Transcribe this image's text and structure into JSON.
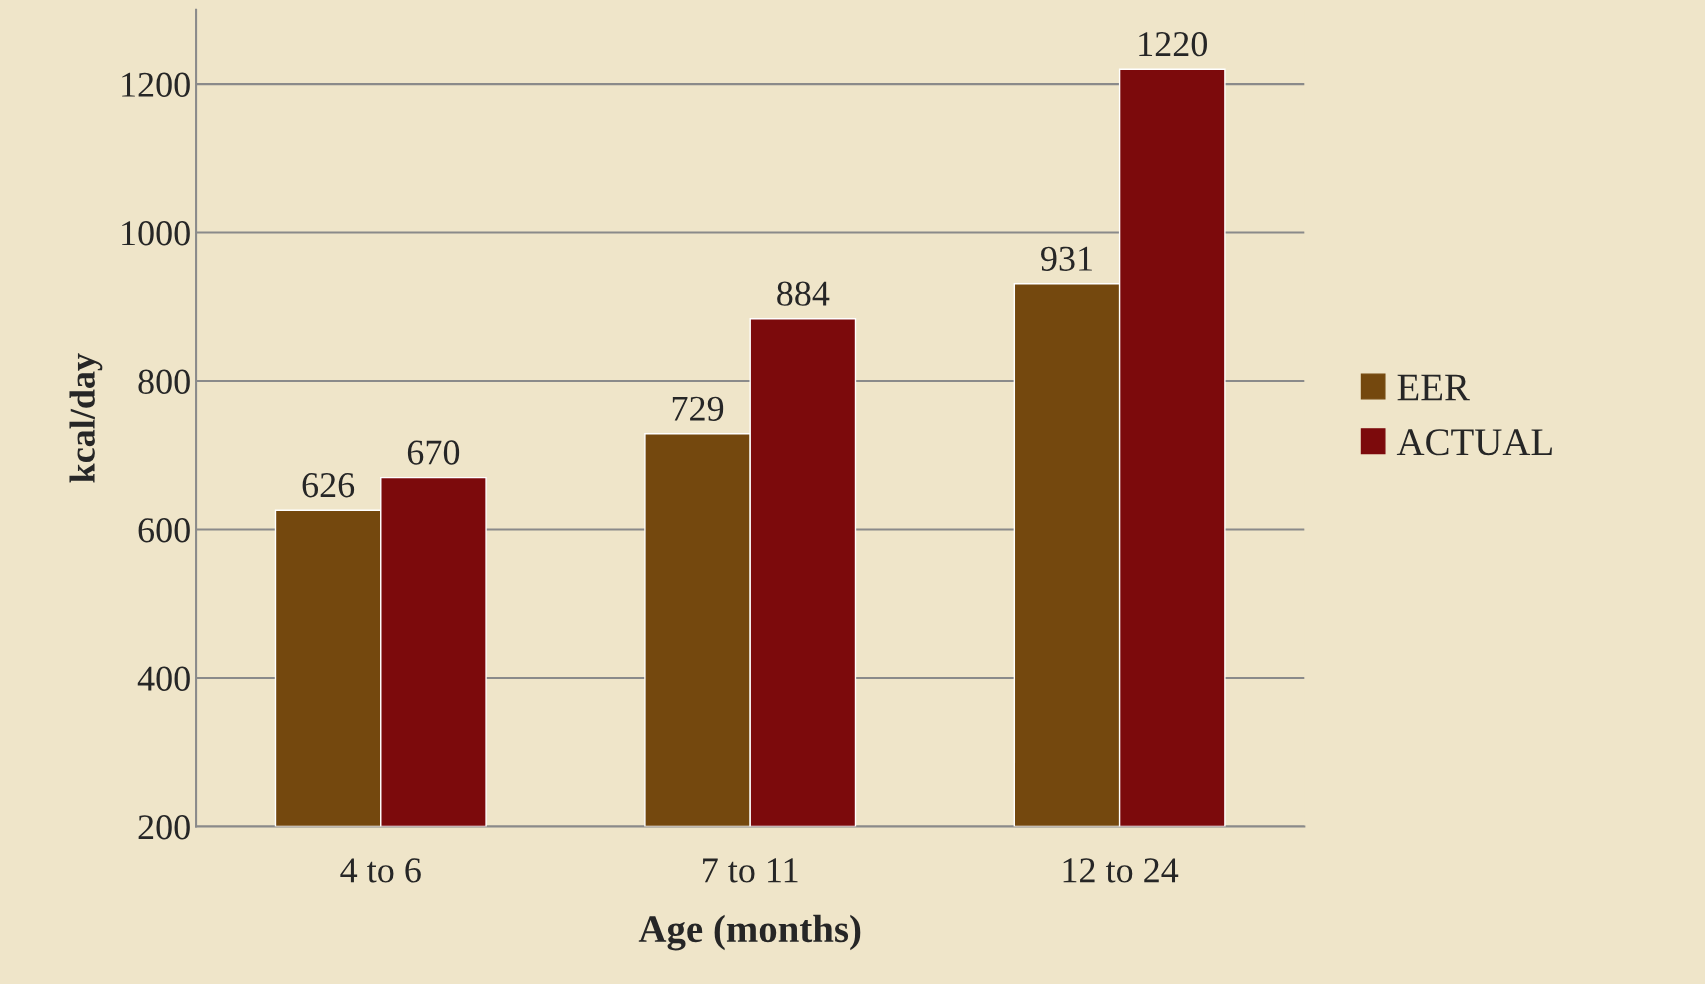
{
  "chart_data": {
    "type": "bar",
    "xlabel": "Age (months)",
    "ylabel": "kcal/day",
    "categories": [
      "4 to 6",
      "7 to 11",
      "12 to 24"
    ],
    "series": [
      {
        "name": "EER",
        "color": "#74480e",
        "values": [
          626,
          729,
          931
        ]
      },
      {
        "name": "ACTUAL",
        "color": "#7c0a0c",
        "values": [
          670,
          884,
          1220
        ]
      }
    ],
    "ylim": [
      200,
      1300
    ],
    "yticks": [
      200,
      400,
      600,
      800,
      1000,
      1200
    ],
    "grid": "y",
    "legend": "right",
    "data_labels": true
  }
}
